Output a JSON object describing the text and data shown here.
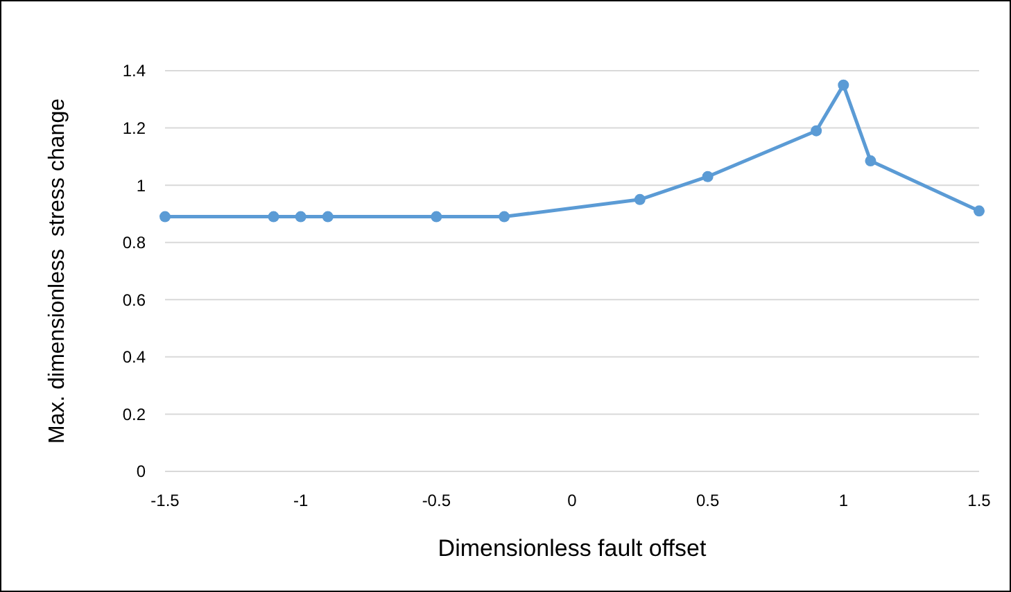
{
  "chart_data": {
    "type": "line",
    "xlabel": "Dimensionless fault offset",
    "ylabel": "Max. dimensionless  stress change",
    "x": [
      -1.5,
      -1.1,
      -1,
      -0.9,
      -0.5,
      -0.25,
      0.25,
      0.5,
      0.9,
      1,
      1.1,
      1.5
    ],
    "series": [
      {
        "color": "#5b9bd5",
        "values": [
          0.89,
          0.89,
          0.89,
          0.89,
          0.89,
          0.89,
          0.95,
          1.03,
          1.19,
          1.35,
          1.085,
          0.91
        ]
      }
    ],
    "xlim": [
      -1.5,
      1.5
    ],
    "xticks": [
      -1.5,
      -1,
      -0.5,
      0,
      0.5,
      1,
      1.5
    ],
    "ylim": [
      0,
      1.4
    ],
    "yticks": [
      0,
      0.2,
      0.4,
      0.6,
      0.8,
      1,
      1.2,
      1.4
    ],
    "grid": "y",
    "marker": "circle",
    "line_style": "solid"
  }
}
